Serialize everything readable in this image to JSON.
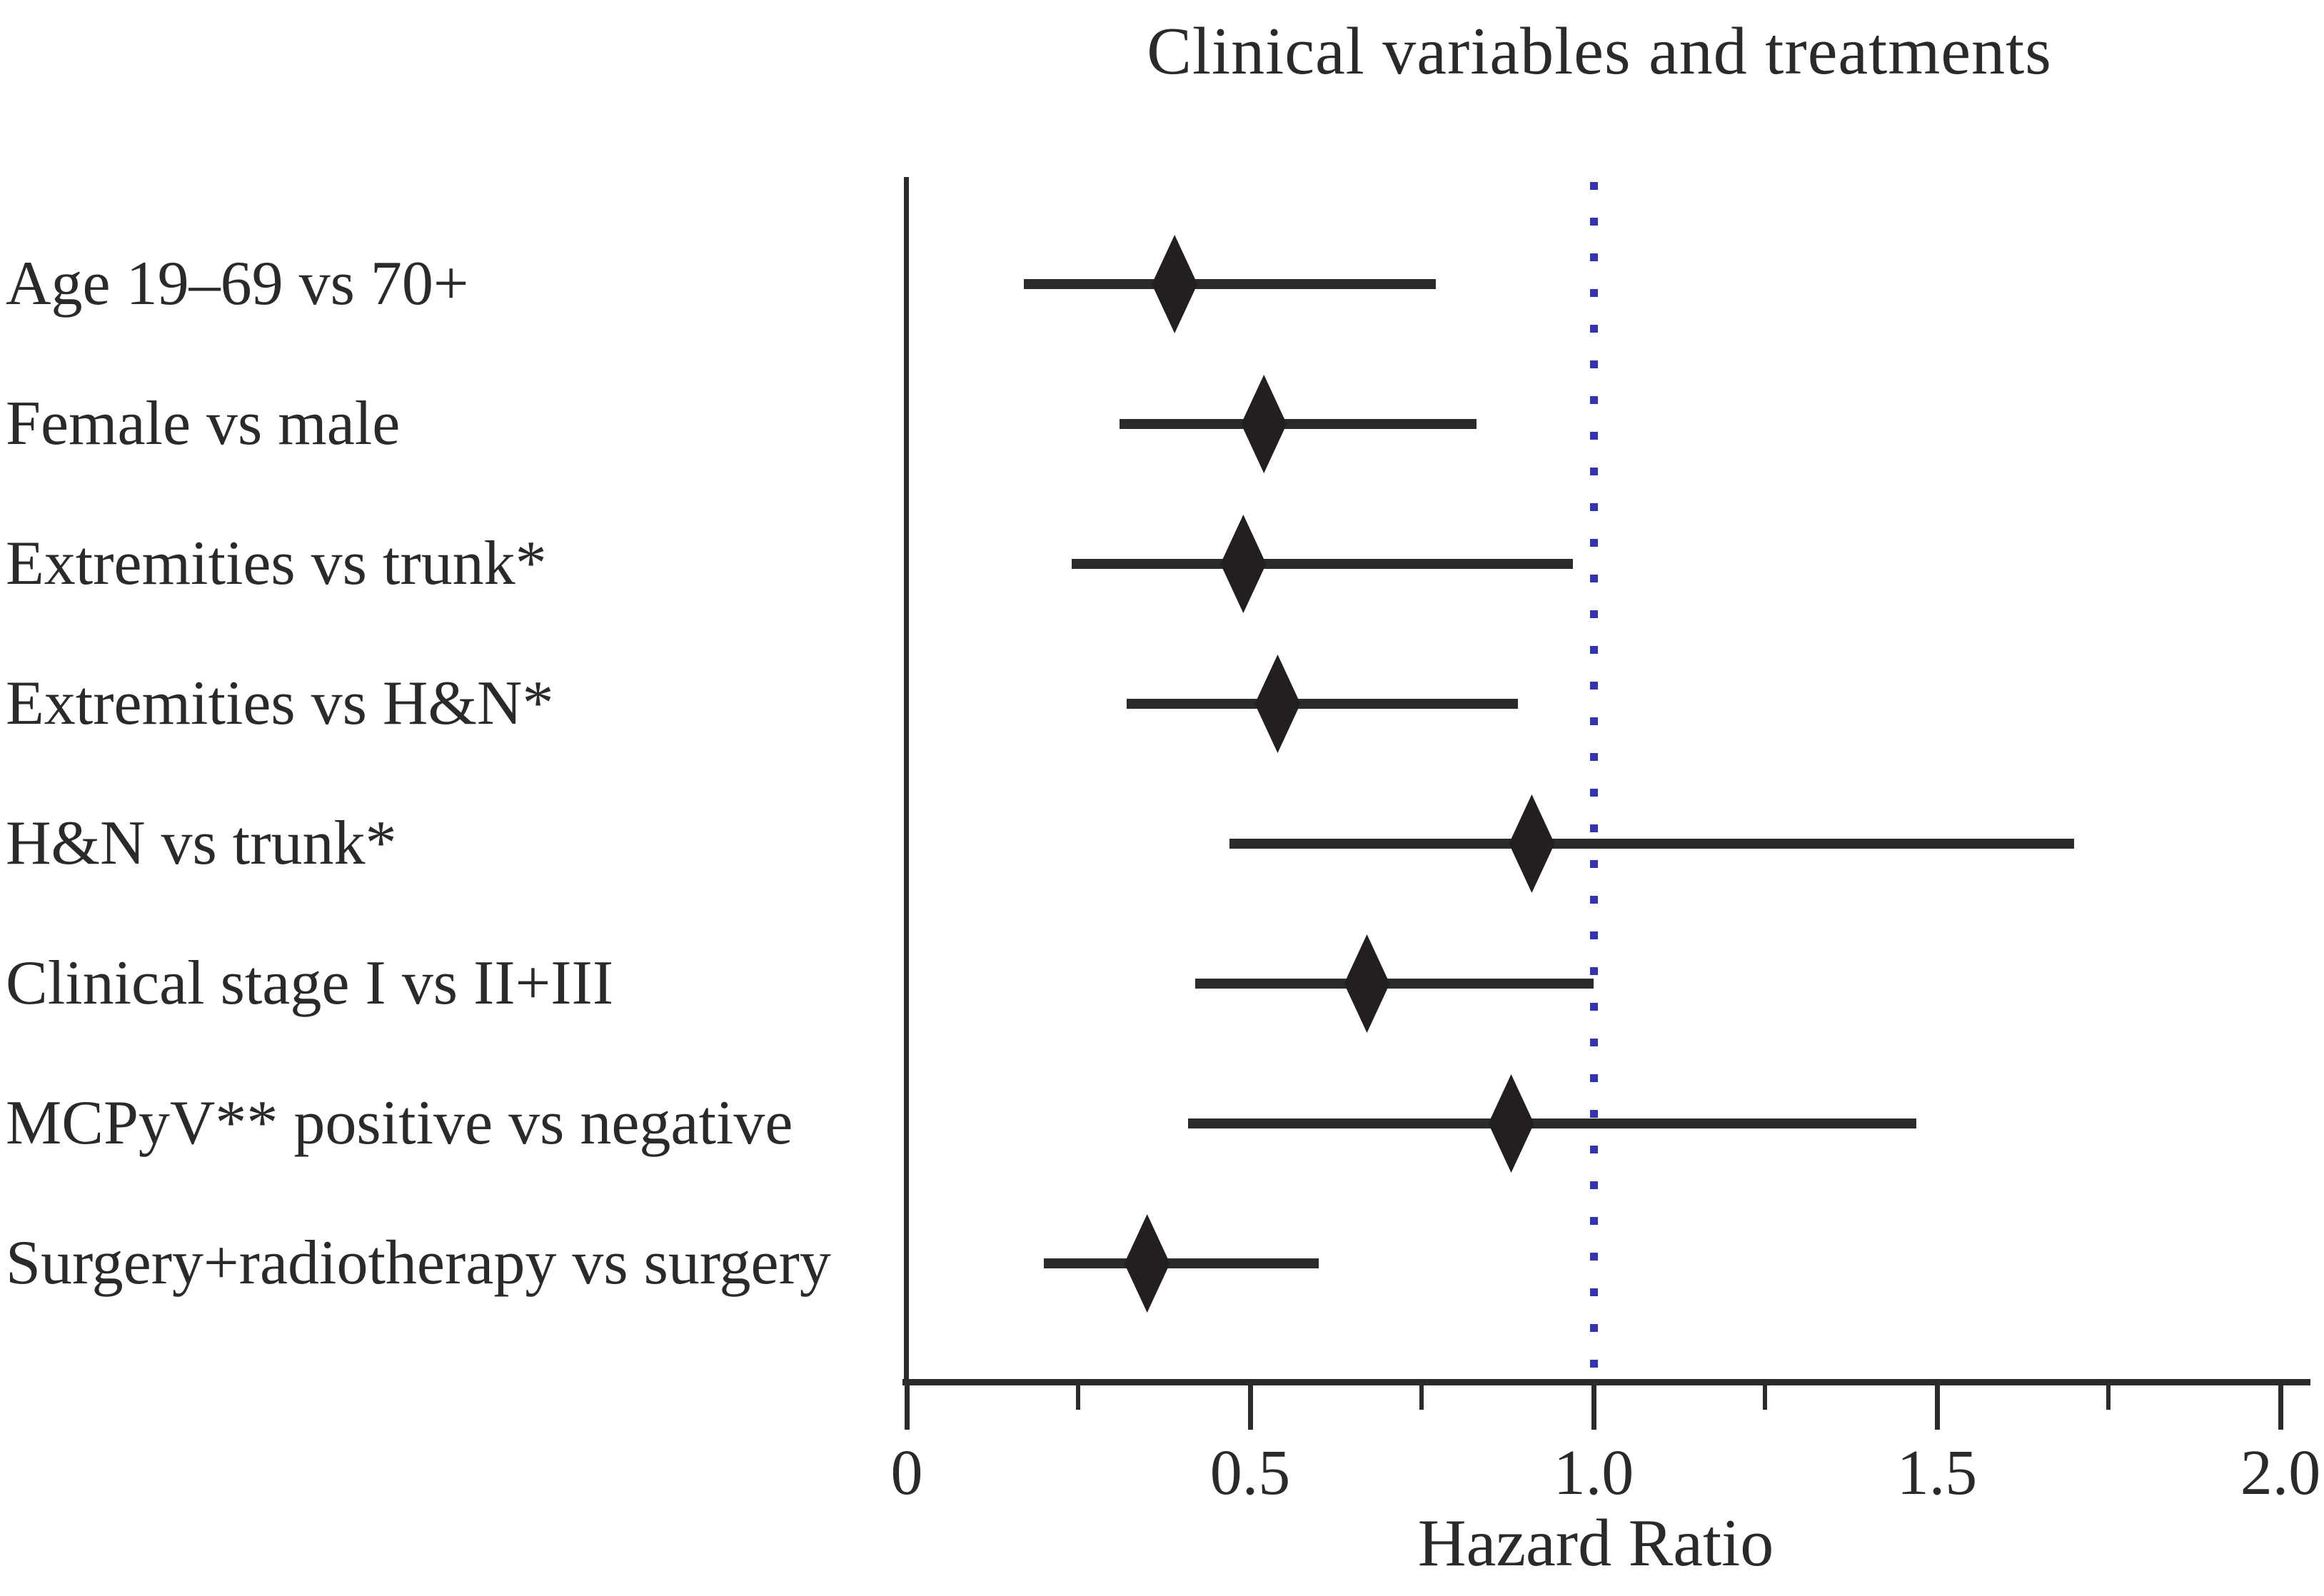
{
  "title": "Clinical variables and treatments",
  "xlabel": "Hazard Ratio",
  "colors": {
    "ink": "#231f20",
    "axis": "#2b2b2b",
    "reference_line": "#3434b2",
    "background": "#ffffff"
  },
  "chart_data": {
    "type": "forest",
    "title": "Clinical variables and treatments",
    "xlabel": "Hazard Ratio",
    "xlim": [
      0,
      2.0
    ],
    "x_major_ticks": [
      0,
      0.5,
      1.0,
      1.5,
      2.0
    ],
    "x_major_tick_labels": [
      "0",
      "0.5",
      "1.0",
      "1.5",
      "2.0"
    ],
    "x_minor_ticks": [
      0.25,
      0.75,
      1.25,
      1.75
    ],
    "reference_line_x": 1.0,
    "reference_line_style": "dotted",
    "marker": "diamond",
    "grid": "off",
    "rows": [
      {
        "label": "Age 19–69 vs 70+",
        "hr": 0.39,
        "ci_low": 0.17,
        "ci_high": 0.77
      },
      {
        "label": "Female vs male",
        "hr": 0.52,
        "ci_low": 0.31,
        "ci_high": 0.83
      },
      {
        "label": "Extremities vs trunk*",
        "hr": 0.49,
        "ci_low": 0.24,
        "ci_high": 0.97
      },
      {
        "label": "Extremities vs H&N*",
        "hr": 0.54,
        "ci_low": 0.32,
        "ci_high": 0.89
      },
      {
        "label": "H&N vs trunk*",
        "hr": 0.91,
        "ci_low": 0.47,
        "ci_high": 1.7
      },
      {
        "label": "Clinical stage I vs II+III",
        "hr": 0.67,
        "ci_low": 0.42,
        "ci_high": 1.0
      },
      {
        "label": "MCPyV** positive vs negative",
        "hr": 0.88,
        "ci_low": 0.41,
        "ci_high": 1.47
      },
      {
        "label": "Surgery+radiotherapy vs surgery",
        "hr": 0.35,
        "ci_low": 0.2,
        "ci_high": 0.6
      }
    ]
  }
}
